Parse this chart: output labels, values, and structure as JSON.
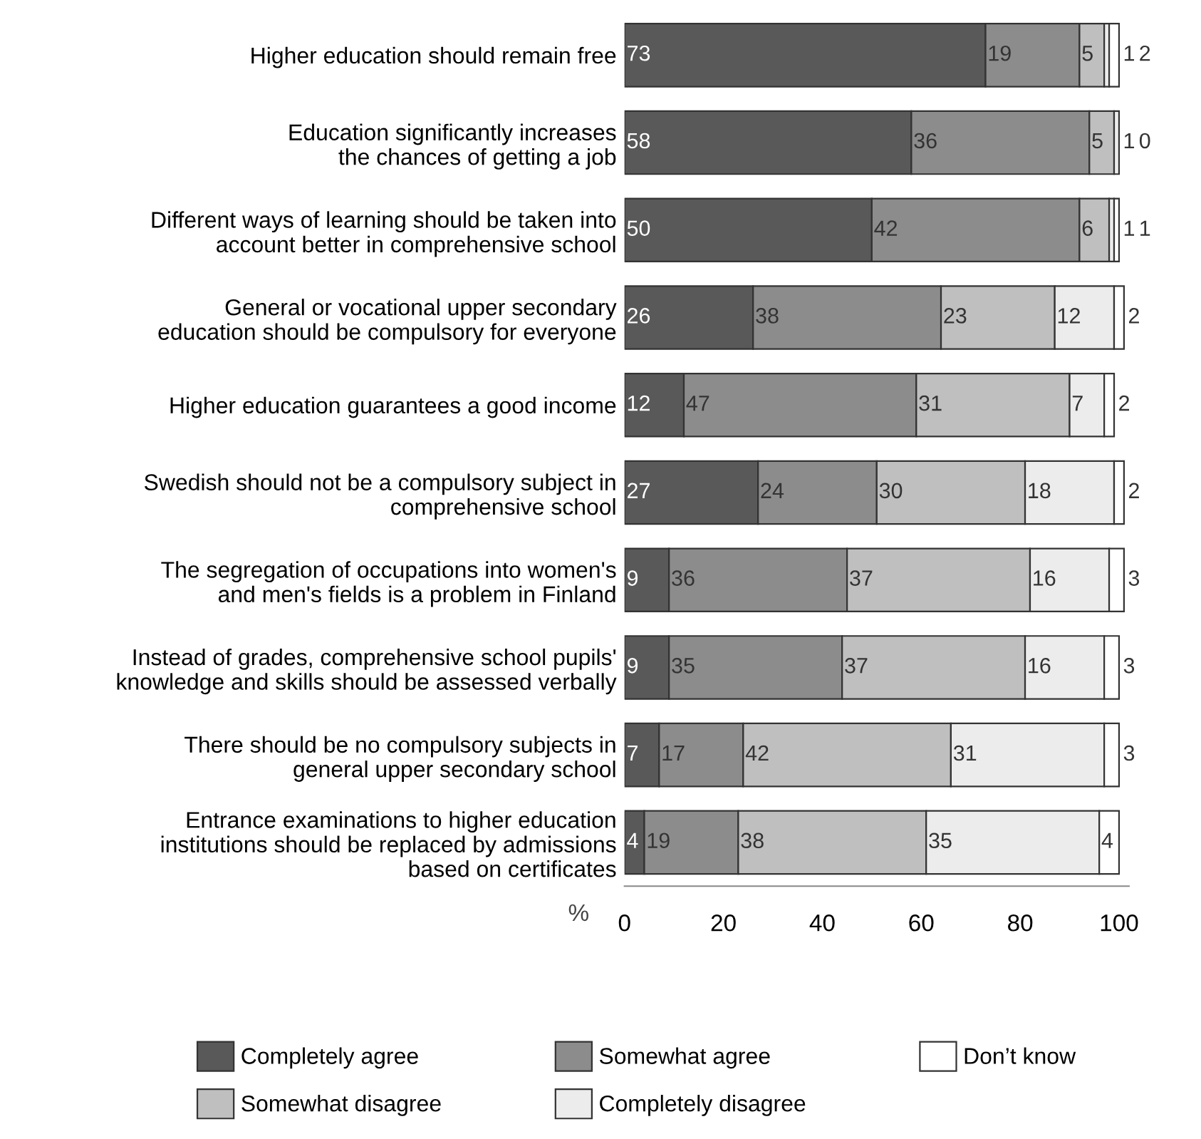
{
  "chart_data": {
    "type": "bar",
    "orientation": "horizontal",
    "stacked": true,
    "data_labels": true,
    "grid": false,
    "legend": "bottom",
    "xlabel": "%",
    "categories": [
      "Higher education should remain free",
      "Education significantly increases\nthe chances of getting a job",
      "Different ways of learning should be taken into\naccount better in comprehensive school",
      "General or vocational upper secondary\neducation should be compulsory for everyone",
      "Higher education guarantees a good income",
      "Swedish should not be a compulsory subject in\ncomprehensive school",
      "The segregation of occupations into women's\nand men's fields is a problem in Finland",
      "Instead of grades, comprehensive school pupils'\nknowledge and skills should be assessed verbally",
      "There should be no compulsory subjects in\ngeneral upper secondary school",
      "Entrance examinations to higher education\ninstitutions should be replaced by admissions\nbased on certificates"
    ],
    "xlim": [
      0,
      102
    ],
    "xticks": [
      0,
      20,
      40,
      60,
      80,
      100
    ],
    "series": [
      {
        "name": "Completely agree",
        "color": "#595959",
        "values": [
          73,
          58,
          50,
          26,
          12,
          27,
          9,
          9,
          7,
          4
        ]
      },
      {
        "name": "Somewhat agree",
        "color": "#8c8c8c",
        "values": [
          19,
          36,
          42,
          38,
          47,
          24,
          36,
          35,
          17,
          19
        ]
      },
      {
        "name": "Somewhat disagree",
        "color": "#bfbfbf",
        "values": [
          5,
          5,
          6,
          23,
          31,
          30,
          37,
          37,
          42,
          38
        ]
      },
      {
        "name": "Completely disagree",
        "color": "#ececec",
        "values": [
          1,
          1,
          1,
          12,
          7,
          18,
          16,
          16,
          31,
          35
        ]
      },
      {
        "name": "Don’t know",
        "color": "#ffffff",
        "values": [
          2,
          0,
          1,
          2,
          2,
          2,
          3,
          3,
          3,
          4
        ]
      }
    ]
  }
}
